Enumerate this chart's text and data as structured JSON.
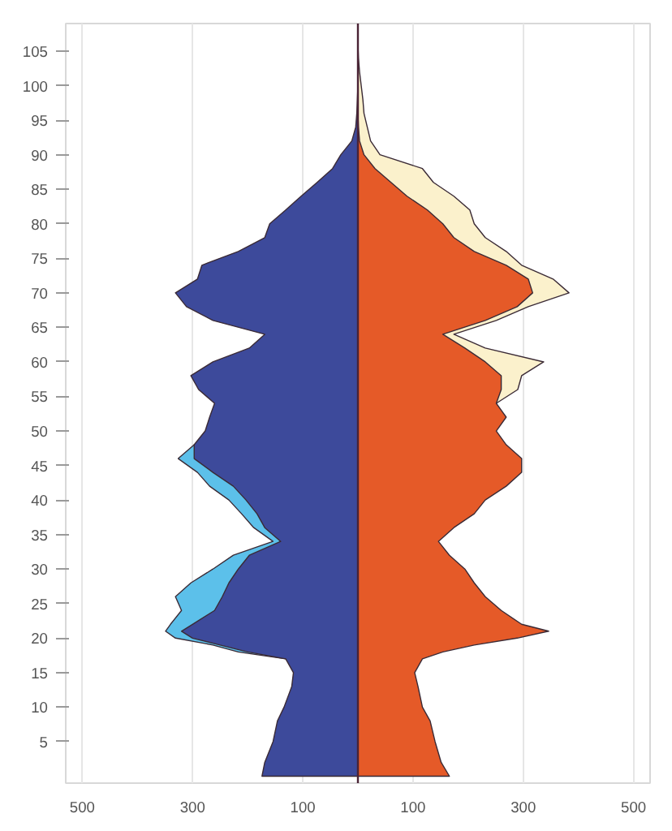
{
  "chart_data": {
    "type": "area",
    "orientation": "horizontal",
    "x": [
      0,
      2,
      5,
      8,
      10,
      13,
      15,
      17,
      18,
      19,
      20,
      21,
      22,
      24,
      26,
      28,
      30,
      32,
      34,
      36,
      38,
      40,
      42,
      44,
      46,
      48,
      50,
      52,
      54,
      56,
      58,
      60,
      62,
      64,
      66,
      68,
      70,
      72,
      74,
      76,
      78,
      80,
      82,
      84,
      86,
      88,
      90,
      92,
      94,
      96,
      98,
      100,
      102,
      104,
      106
    ],
    "series": [
      {
        "color": "#5cc0ea",
        "values": [
          null,
          null,
          null,
          null,
          null,
          null,
          null,
          -131,
          -217,
          -263,
          -331,
          -349,
          -340,
          -320,
          -331,
          -303,
          -263,
          -226,
          -154,
          -189,
          -211,
          -234,
          -269,
          -291,
          -326,
          -297,
          null,
          null,
          null,
          null,
          null,
          null,
          null,
          null,
          null,
          null,
          null,
          null,
          null,
          null,
          null,
          null,
          null,
          null,
          null,
          null,
          null,
          null,
          null,
          null,
          null,
          null,
          null,
          null,
          null
        ]
      },
      {
        "color": "#3d4a9b",
        "values": [
          -174,
          -169,
          -154,
          -146,
          -134,
          -120,
          -117,
          -131,
          -200,
          -250,
          -300,
          -320,
          -300,
          -260,
          -246,
          -234,
          -217,
          -197,
          -140,
          -169,
          -183,
          -203,
          -226,
          -263,
          -297,
          -297,
          -277,
          -269,
          -260,
          -289,
          -303,
          -263,
          -197,
          -169,
          -263,
          -311,
          -331,
          -291,
          -283,
          -217,
          -169,
          -160,
          -131,
          -103,
          -74,
          -46,
          -31,
          -11,
          -4,
          -2,
          -1,
          0,
          0,
          0,
          0
        ]
      },
      {
        "color": "#fbf1cc",
        "values": [
          null,
          null,
          null,
          null,
          null,
          null,
          null,
          null,
          null,
          null,
          null,
          null,
          null,
          null,
          null,
          null,
          null,
          null,
          null,
          null,
          null,
          null,
          null,
          null,
          null,
          null,
          null,
          null,
          251,
          290,
          297,
          337,
          231,
          174,
          251,
          309,
          383,
          354,
          297,
          269,
          231,
          211,
          203,
          174,
          137,
          117,
          40,
          23,
          17,
          11,
          9,
          6,
          3,
          1,
          0
        ]
      },
      {
        "color": "#e55a28",
        "values": [
          166,
          151,
          140,
          131,
          117,
          109,
          103,
          117,
          154,
          211,
          289,
          346,
          297,
          260,
          231,
          211,
          194,
          166,
          146,
          174,
          211,
          231,
          269,
          297,
          297,
          269,
          251,
          269,
          251,
          260,
          260,
          231,
          194,
          154,
          231,
          289,
          317,
          309,
          269,
          211,
          174,
          154,
          126,
          89,
          60,
          31,
          11,
          3,
          1,
          0,
          0,
          0,
          0,
          0,
          0
        ]
      }
    ],
    "xlim": [
      -530,
      530
    ],
    "xticks": [
      {
        "value": -500,
        "label": "500"
      },
      {
        "value": -300,
        "label": "300"
      },
      {
        "value": -100,
        "label": "100"
      },
      {
        "value": 100,
        "label": "100"
      },
      {
        "value": 300,
        "label": "300"
      },
      {
        "value": 500,
        "label": "500"
      }
    ],
    "ylim": [
      -1,
      109
    ],
    "yticks": [
      5,
      10,
      15,
      20,
      25,
      30,
      35,
      40,
      45,
      50,
      55,
      60,
      65,
      70,
      75,
      80,
      85,
      90,
      95,
      100,
      105
    ],
    "ref_lines": [
      {
        "axis": "x",
        "value": 0,
        "color": "#4a2335"
      }
    ],
    "grid": "x"
  }
}
